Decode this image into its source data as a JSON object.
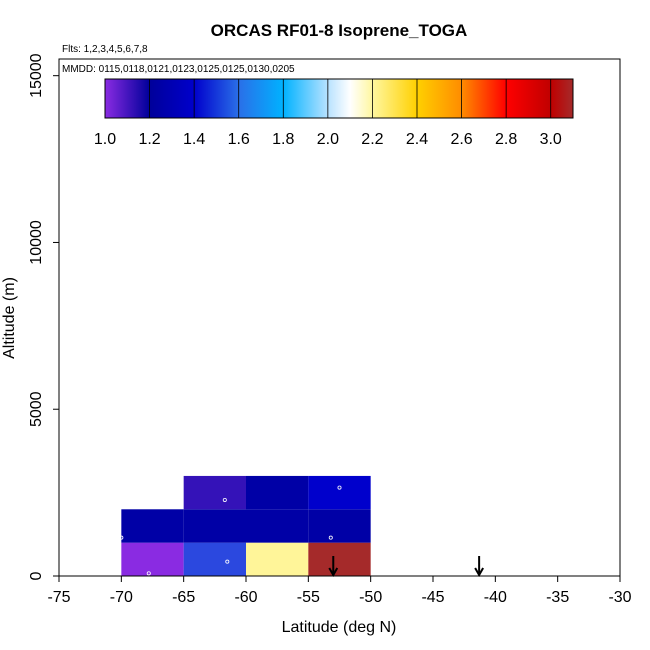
{
  "chart_data": {
    "type": "heatmap",
    "title": "ORCAS RF01-8 Isoprene_TOGA",
    "annotations": {
      "flights": "Flts: 1,2,3,4,5,6,7,8",
      "dates": "MMDD: 0115,0118,0121,0123,0125,0125,0130,0205"
    },
    "xlabel": "Latitude (deg N)",
    "ylabel": "Altitude (m)",
    "xlim": [
      -75,
      -30
    ],
    "ylim": [
      0,
      15500
    ],
    "xticks": [
      -75,
      -70,
      -65,
      -60,
      -55,
      -50,
      -45,
      -40,
      -35,
      -30
    ],
    "yticks": [
      0,
      5000,
      10000,
      15000
    ],
    "colorbar": {
      "range": [
        1.0,
        3.1
      ],
      "ticks": [
        "1.0",
        "1.2",
        "1.4",
        "1.6",
        "1.8",
        "2.0",
        "2.2",
        "2.4",
        "2.6",
        "2.8",
        "3.0"
      ],
      "tick_values": [
        1.0,
        1.2,
        1.4,
        1.6,
        1.8,
        2.0,
        2.2,
        2.4,
        2.6,
        2.8,
        3.0
      ],
      "color_stops": [
        {
          "v": 1.0,
          "c": "#8a2be2"
        },
        {
          "v": 1.2,
          "c": "#00009a"
        },
        {
          "v": 1.4,
          "c": "#0000cc"
        },
        {
          "v": 1.6,
          "c": "#2a6fe8"
        },
        {
          "v": 1.8,
          "c": "#00b2ff"
        },
        {
          "v": 2.0,
          "c": "#b8e2ff"
        },
        {
          "v": 2.1,
          "c": "#ffffff"
        },
        {
          "v": 2.2,
          "c": "#fff7a0"
        },
        {
          "v": 2.4,
          "c": "#ffd000"
        },
        {
          "v": 2.6,
          "c": "#ff8c00"
        },
        {
          "v": 2.8,
          "c": "#ff0000"
        },
        {
          "v": 3.0,
          "c": "#c00000"
        },
        {
          "v": 3.1,
          "c": "#a52a2a"
        }
      ]
    },
    "cells": [
      {
        "x0": -70,
        "x1": -65,
        "y0": 0,
        "y1": 1000,
        "value": 1.05,
        "color": "#8a2be2"
      },
      {
        "x0": -65,
        "x1": -60,
        "y0": 0,
        "y1": 1000,
        "value": 1.5,
        "color": "#2b48df"
      },
      {
        "x0": -60,
        "x1": -55,
        "y0": 0,
        "y1": 1000,
        "value": 2.25,
        "color": "#fff599"
      },
      {
        "x0": -55,
        "x1": -50,
        "y0": 0,
        "y1": 1000,
        "value": 3.05,
        "color": "#a52a2a"
      },
      {
        "x0": -70,
        "x1": -65,
        "y0": 1000,
        "y1": 2000,
        "value": 1.3,
        "color": "#0000a6"
      },
      {
        "x0": -65,
        "x1": -60,
        "y0": 1000,
        "y1": 2000,
        "value": 1.3,
        "color": "#0000a6"
      },
      {
        "x0": -60,
        "x1": -55,
        "y0": 1000,
        "y1": 2000,
        "value": 1.3,
        "color": "#0000a6"
      },
      {
        "x0": -55,
        "x1": -50,
        "y0": 1000,
        "y1": 2000,
        "value": 1.3,
        "color": "#0000a6"
      },
      {
        "x0": -65,
        "x1": -60,
        "y0": 2000,
        "y1": 3000,
        "value": 1.1,
        "color": "#3412b8"
      },
      {
        "x0": -60,
        "x1": -55,
        "y0": 2000,
        "y1": 3000,
        "value": 1.3,
        "color": "#0000a6"
      },
      {
        "x0": -55,
        "x1": -50,
        "y0": 2000,
        "y1": 3000,
        "value": 1.4,
        "color": "#0000cc"
      }
    ],
    "sample_points": [
      {
        "x": -67.8,
        "y": 80
      },
      {
        "x": -61.5,
        "y": 430
      },
      {
        "x": -70.0,
        "y": 1150
      },
      {
        "x": -53.2,
        "y": 1150
      },
      {
        "x": -61.7,
        "y": 2280
      },
      {
        "x": -52.5,
        "y": 2650
      }
    ],
    "markers": [
      {
        "type": "arrow-down",
        "x": -53.0
      },
      {
        "type": "arrow-down",
        "x": -41.3
      }
    ]
  }
}
